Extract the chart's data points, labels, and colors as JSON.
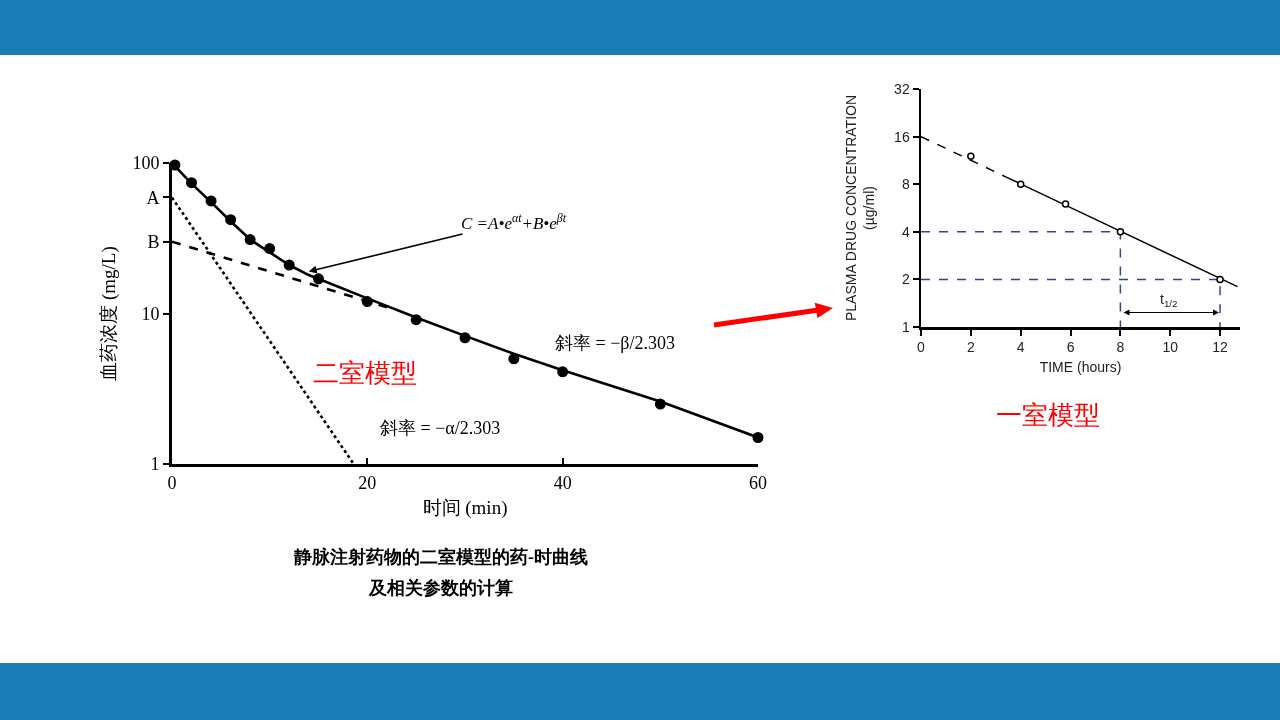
{
  "chart_data": [
    {
      "type": "line",
      "xlabel": "时间 (min)",
      "ylabel": "血药浓度 (mg/L)",
      "log": "y",
      "xlim": [
        0,
        60
      ],
      "ylim": [
        1,
        100
      ],
      "xticks": [
        0,
        20,
        40,
        60
      ],
      "yticks": [
        1,
        10,
        {
          "value": 30,
          "label": "B"
        },
        {
          "value": 59,
          "label": "A"
        },
        100
      ],
      "series": [
        {
          "type": "scatter",
          "marker": "circle",
          "color": "#000000",
          "x": [
            0.3,
            2,
            4,
            6,
            8,
            10,
            12,
            15,
            20,
            25,
            30,
            35,
            40,
            50,
            60
          ],
          "values": [
            97,
            74,
            56,
            42,
            31,
            27,
            21,
            17,
            12,
            9.1,
            6.9,
            5.0,
            4.1,
            2.5,
            1.5
          ]
        },
        {
          "type": "line",
          "line_style": "solid",
          "color": "#000000",
          "x": [
            0,
            2,
            4,
            6,
            8,
            10,
            12,
            14,
            16,
            20,
            25,
            30,
            35,
            40,
            50,
            60
          ],
          "values": [
            100,
            73,
            55,
            41,
            31,
            25.5,
            21,
            18,
            16,
            12.6,
            9.4,
            7.1,
            5.4,
            4.2,
            2.6,
            1.5
          ]
        },
        {
          "type": "line",
          "line_style": "dashed",
          "color": "#000000",
          "x": [
            0,
            22
          ],
          "values": [
            30,
            11
          ]
        },
        {
          "type": "line",
          "line_style": "dotted",
          "color": "#000000",
          "x": [
            0,
            18.6
          ],
          "values": [
            59,
            1
          ]
        }
      ],
      "annotations": [
        {
          "text": "C =A•e$^{αt}$+B•e$^{βt}$",
          "x": 14,
          "y": 19
        },
        "斜率 = −β/2.303",
        "斜率 = −α/2.303",
        "二室模型",
        "静脉注射药物的二室模型的药-时曲线",
        "及相关参数的计算"
      ]
    },
    {
      "type": "line",
      "xlabel": "TIME (hours)",
      "ylabel": "PLASMA DRUG CONCENTRATION\n(µg/ml)",
      "log": "y",
      "xlim": [
        0,
        12.8
      ],
      "ylim": [
        1,
        32
      ],
      "xticks": [
        0,
        2,
        4,
        6,
        8,
        10,
        12
      ],
      "yticks": [
        1,
        2,
        4,
        8,
        16,
        32
      ],
      "series": [
        {
          "type": "line",
          "line_style": "dashed",
          "color": "#000000",
          "x": [
            0,
            3.4
          ],
          "values": [
            16,
            8.9
          ]
        },
        {
          "type": "line",
          "line_style": "solid",
          "color": "#000000",
          "x": [
            3.4,
            12.7
          ],
          "values": [
            8.9,
            1.8
          ]
        },
        {
          "type": "line",
          "line_style": "dashed",
          "color": "#2f4a7c",
          "x": [
            0,
            8,
            8
          ],
          "values": [
            4,
            4,
            1
          ]
        },
        {
          "type": "line",
          "line_style": "dashed",
          "color": "#2f4a7c",
          "x": [
            0,
            12,
            12
          ],
          "values": [
            2,
            2,
            1
          ]
        },
        {
          "type": "scatter",
          "marker": "circle",
          "color": "#000000",
          "x": [
            2,
            4,
            5.8,
            8,
            12
          ],
          "values": [
            12,
            8,
            6,
            4,
            2
          ]
        }
      ],
      "annotations": [
        "t$_{1/2}$",
        "一室模型"
      ]
    }
  ]
}
